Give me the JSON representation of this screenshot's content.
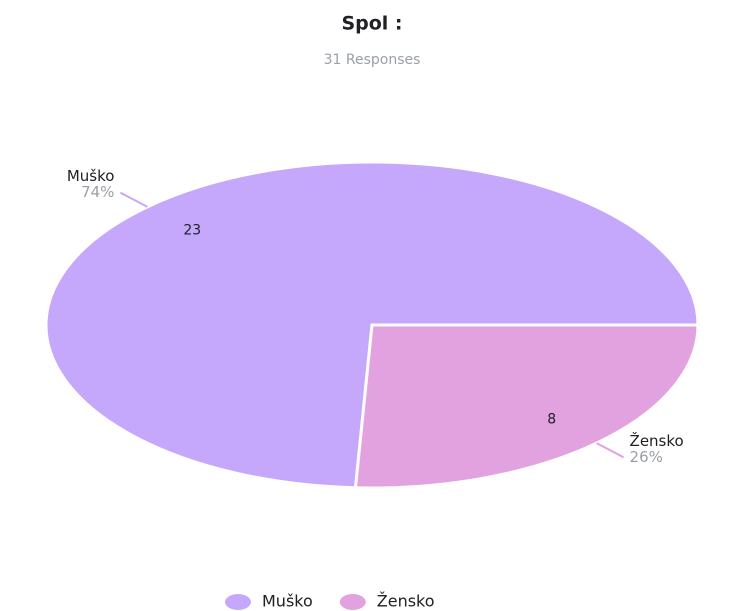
{
  "chart_data": {
    "type": "pie",
    "title": "Spol :",
    "subtitle": "31 Responses",
    "categories": [
      "Muško",
      "Žensko"
    ],
    "values": [
      23,
      8
    ],
    "percentages": [
      74,
      26
    ],
    "percentage_labels": [
      "74%",
      "26%"
    ],
    "colors": [
      "#c5a8fb",
      "#e2a2e0"
    ],
    "legend": "bottom"
  }
}
